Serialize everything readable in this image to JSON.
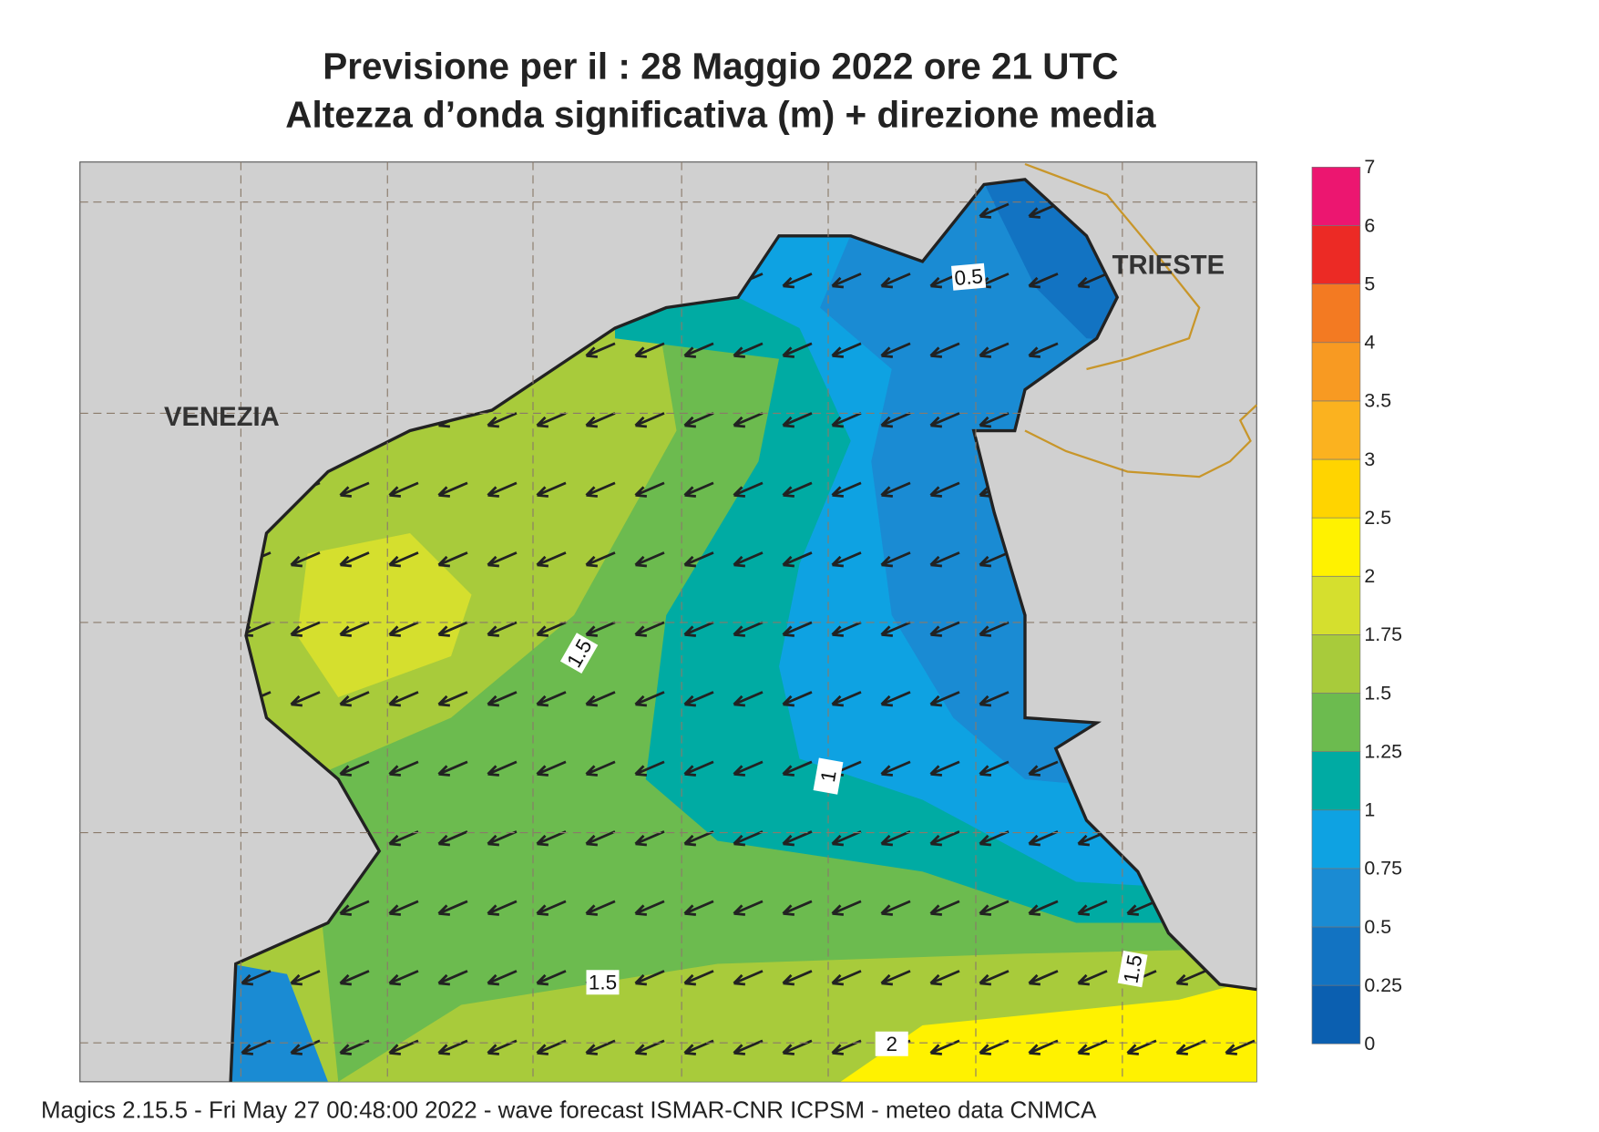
{
  "header": {
    "title": "Previsione per il  :  28   Maggio  2022   ore 21 UTC",
    "subtitle": "Altezza d’onda significativa (m) + direzione media"
  },
  "legend": {
    "levels": [
      0,
      0.25,
      0.5,
      0.75,
      1,
      1.25,
      1.5,
      1.75,
      2,
      2.5,
      3,
      3.5,
      4,
      5,
      6,
      7
    ],
    "colors": [
      "#0b5fb0",
      "#1273c2",
      "#1a8bd3",
      "#0ea2e2",
      "#00aba3",
      "#6cbb4f",
      "#a8cb3b",
      "#d5df2e",
      "#fff200",
      "#ffd400",
      "#fbb21f",
      "#f89a22",
      "#f37a22",
      "#ec2a25",
      "#ec1670"
    ]
  },
  "map": {
    "places": [
      "VENEZIA",
      "TRIESTE"
    ],
    "contour_labels": [
      "0.5",
      "1",
      "1.5",
      "1.5",
      "1.5",
      "2"
    ]
  },
  "footer": "Magics 2.15.5 - Fri May 27 00:48:00 2022 - wave forecast  ISMAR-CNR  ICPSM - meteo data   CNMCA"
}
